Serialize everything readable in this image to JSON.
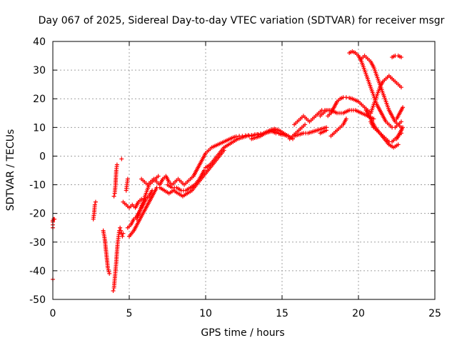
{
  "chart_data": {
    "type": "scatter",
    "title": "Day 067 of 2025, Sidereal Day-to-day VTEC variation (SDTVAR) for receiver msgr",
    "xlabel": "GPS time / hours",
    "ylabel": "SDTVAR / TECUs",
    "xlim": [
      0,
      25
    ],
    "ylim": [
      -50,
      40
    ],
    "xticks": [
      "0",
      "5",
      "10",
      "15",
      "20",
      "25"
    ],
    "yticks": [
      "-50",
      "-40",
      "-30",
      "-20",
      "-10",
      "0",
      "10",
      "20",
      "30",
      "40"
    ],
    "grid": true,
    "marker": "plus",
    "color": "#ff0000",
    "series": [
      {
        "x": [
          0.0,
          0.0,
          0.0,
          0.0,
          0.05,
          0.1
        ],
        "y": [
          -25,
          -24,
          -23,
          -22.5,
          -22,
          -22
        ]
      },
      {
        "x": [
          0.0
        ],
        "y": [
          -43
        ]
      },
      {
        "x": [
          2.65,
          2.7,
          2.75,
          2.8
        ],
        "y": [
          -22,
          -20,
          -17,
          -16
        ]
      },
      {
        "x": [
          3.3,
          3.4,
          3.5,
          3.6,
          3.7
        ],
        "y": [
          -26,
          -29,
          -34,
          -39,
          -41
        ]
      },
      {
        "x": [
          3.95,
          4.0,
          4.05,
          4.1,
          4.15,
          4.2,
          4.25,
          4.3,
          4.35,
          4.4
        ],
        "y": [
          -47,
          -46,
          -43,
          -40,
          -37,
          -33,
          -30,
          -28,
          -26,
          -25
        ]
      },
      {
        "x": [
          4.0,
          4.05,
          4.1,
          4.15,
          4.2
        ],
        "y": [
          -14,
          -13,
          -10,
          -5,
          -3
        ]
      },
      {
        "x": [
          4.5
        ],
        "y": [
          -1
        ]
      },
      {
        "x": [
          4.45,
          4.5,
          4.55,
          4.6
        ],
        "y": [
          -26,
          -27,
          -28,
          -27
        ]
      },
      {
        "x": [
          4.8,
          4.85,
          4.9
        ],
        "y": [
          -12,
          -10,
          -8
        ]
      },
      {
        "x": [
          4.6,
          4.8,
          5.0,
          5.2,
          5.4,
          5.6,
          5.8
        ],
        "y": [
          -16,
          -17,
          -18,
          -17,
          -18,
          -16,
          -15
        ]
      },
      {
        "x": [
          4.9,
          5.1,
          5.3,
          5.5,
          5.7,
          5.9,
          6.1,
          6.3,
          6.5
        ],
        "y": [
          -25,
          -24,
          -22,
          -21,
          -19,
          -17,
          -15,
          -14,
          -12
        ]
      },
      {
        "x": [
          5.0,
          5.3,
          5.6,
          5.9,
          6.2,
          6.5,
          6.8
        ],
        "y": [
          -28,
          -26,
          -23,
          -20,
          -17,
          -14,
          -11
        ]
      },
      {
        "x": [
          5.5,
          5.7,
          5.9,
          6.1,
          6.3,
          6.5,
          6.7,
          6.9
        ],
        "y": [
          -22,
          -19,
          -16,
          -13,
          -10,
          -9,
          -8,
          -7
        ]
      },
      {
        "x": [
          5.8,
          6.0,
          6.2,
          6.4,
          6.6,
          6.8,
          7.0,
          7.2,
          7.4,
          7.6,
          7.8,
          8.0,
          8.2,
          8.4,
          8.6,
          8.8,
          9.0,
          9.2,
          9.4,
          9.6,
          9.8,
          10.0,
          10.2,
          10.4,
          10.6,
          10.8,
          11.0,
          11.2,
          11.4,
          11.6,
          11.8,
          12.0,
          12.2,
          12.4,
          12.6,
          12.8,
          13.0,
          13.2,
          13.4,
          13.6,
          13.8,
          14.0,
          14.2,
          14.4,
          14.6,
          14.8,
          15.0,
          15.2,
          15.4
        ],
        "y": [
          -8,
          -9,
          -10,
          -9,
          -8,
          -9,
          -10,
          -8,
          -7,
          -9,
          -10,
          -9,
          -8,
          -9,
          -10,
          -9,
          -8,
          -7,
          -5,
          -3,
          -1,
          1,
          2,
          3,
          3.5,
          4,
          4.5,
          5,
          5.5,
          6,
          6.5,
          6.8,
          7,
          7,
          7.2,
          7.3,
          7.3,
          7.5,
          7.6,
          7.8,
          8.0,
          8.5,
          8.8,
          8.5,
          8.0,
          7.8,
          7.5,
          7.3,
          7.0
        ]
      },
      {
        "x": [
          7.0,
          7.3,
          7.6,
          7.9,
          8.2,
          8.5,
          8.8,
          9.1,
          9.4,
          9.7,
          10.0,
          10.3,
          10.6,
          10.9,
          11.2
        ],
        "y": [
          -11,
          -12,
          -13,
          -12,
          -13,
          -14,
          -13,
          -12,
          -10,
          -8,
          -6,
          -4,
          -2,
          0,
          2
        ]
      },
      {
        "x": [
          7.5,
          7.8,
          8.1,
          8.4,
          8.7,
          9.0,
          9.3,
          9.6,
          9.9
        ],
        "y": [
          -10,
          -11,
          -11,
          -12,
          -12,
          -11,
          -10,
          -8,
          -5
        ]
      },
      {
        "x": [
          10.0,
          10.3,
          10.6,
          10.9,
          11.2,
          11.5,
          11.8,
          12.1,
          12.4,
          12.7,
          13.0,
          13.3,
          13.6,
          13.9,
          14.2,
          14.5,
          14.8,
          15.1,
          15.4
        ],
        "y": [
          -4,
          -3,
          -1,
          1,
          3,
          4,
          5,
          6,
          6.5,
          7,
          7,
          7.5,
          7.5,
          8,
          8.5,
          9,
          8,
          7.5,
          7
        ]
      },
      {
        "x": [
          13.0,
          13.3,
          13.6,
          13.9,
          14.2,
          14.5,
          14.8,
          15.1,
          15.4,
          15.7
        ],
        "y": [
          6,
          6.5,
          7,
          8,
          9,
          9.5,
          9,
          8,
          7,
          6
        ]
      },
      {
        "x": [
          15.5,
          15.7,
          15.9,
          16.1,
          16.3,
          16.5
        ],
        "y": [
          6,
          7,
          8,
          9,
          10,
          11
        ]
      },
      {
        "x": [
          15.8,
          16.0,
          16.2,
          16.4,
          16.6,
          16.8,
          17.0,
          17.2,
          17.4,
          17.6,
          17.8,
          18.0
        ],
        "y": [
          11,
          12,
          13,
          14,
          13,
          12,
          13,
          14,
          15,
          16,
          16,
          16
        ]
      },
      {
        "x": [
          15.8,
          16.1,
          16.4,
          16.7,
          17.0,
          17.3,
          17.6,
          17.9
        ],
        "y": [
          7,
          7.5,
          8,
          8,
          8.5,
          9,
          9.5,
          10
        ]
      },
      {
        "x": [
          17.5,
          17.7,
          17.9,
          18.1,
          18.3
        ],
        "y": [
          14,
          15,
          16,
          16,
          16
        ]
      },
      {
        "x": [
          17.5,
          17.7,
          17.9
        ],
        "y": [
          8,
          8.5,
          9
        ]
      },
      {
        "x": [
          18.2,
          18.4,
          18.6,
          18.8,
          19.0,
          19.2
        ],
        "y": [
          7,
          8,
          9,
          10,
          11,
          13
        ]
      },
      {
        "x": [
          18.0,
          18.2,
          18.4,
          18.6,
          18.8,
          19.0,
          19.2,
          19.4,
          19.6,
          19.8,
          20.0,
          20.2,
          20.4,
          20.6,
          20.8
        ],
        "y": [
          14,
          15,
          17,
          19,
          20,
          20.5,
          20.5,
          20.3,
          20,
          19.5,
          19,
          18,
          17,
          16,
          15
        ]
      },
      {
        "x": [
          18.2,
          18.6,
          19.0,
          19.4,
          19.8,
          20.2,
          20.6,
          21.0
        ],
        "y": [
          16,
          15,
          15,
          16,
          16,
          15,
          14,
          13
        ]
      },
      {
        "x": [
          19.4,
          19.6,
          19.8,
          20.0,
          20.2,
          20.4,
          20.6,
          20.8,
          21.0,
          21.2,
          21.4,
          21.6,
          21.8,
          22.0,
          22.2,
          22.4,
          22.6,
          22.8
        ],
        "y": [
          36,
          36.5,
          36,
          35,
          33,
          30,
          27,
          24,
          21,
          18,
          16,
          14,
          12,
          11,
          10,
          10,
          11,
          12
        ]
      },
      {
        "x": [
          20.2,
          20.4,
          20.6,
          20.8,
          21.0,
          21.2,
          21.4,
          21.6,
          21.8,
          22.0,
          22.2,
          22.4,
          22.6,
          22.8
        ],
        "y": [
          34,
          35,
          34,
          33,
          31,
          28,
          25,
          22,
          19,
          16,
          14,
          12,
          11,
          10
        ]
      },
      {
        "x": [
          20.8,
          21.0,
          21.2,
          21.4,
          21.6,
          21.8,
          22.0,
          22.2,
          22.4,
          22.6,
          22.8
        ],
        "y": [
          15,
          18,
          21,
          24,
          26,
          27,
          28,
          27,
          26,
          25,
          24
        ]
      },
      {
        "x": [
          20.5,
          20.8,
          21.1,
          21.4,
          21.7,
          22.0,
          22.3,
          22.6
        ],
        "y": [
          16,
          13,
          10,
          8,
          6,
          4,
          3,
          4
        ]
      },
      {
        "x": [
          20.8,
          21.0,
          21.2,
          21.4,
          21.6,
          21.8,
          22.0,
          22.2,
          22.4,
          22.6,
          22.8
        ],
        "y": [
          12,
          10,
          9,
          8,
          7,
          6,
          5,
          5,
          6,
          7,
          8
        ]
      },
      {
        "x": [
          22.2,
          22.4,
          22.6,
          22.8
        ],
        "y": [
          34.5,
          35,
          35,
          34.5
        ]
      },
      {
        "x": [
          22.5,
          22.7,
          22.9
        ],
        "y": [
          13,
          15,
          17
        ]
      },
      {
        "x": [
          22.5,
          22.7,
          22.9
        ],
        "y": [
          6,
          8,
          10
        ]
      }
    ]
  }
}
